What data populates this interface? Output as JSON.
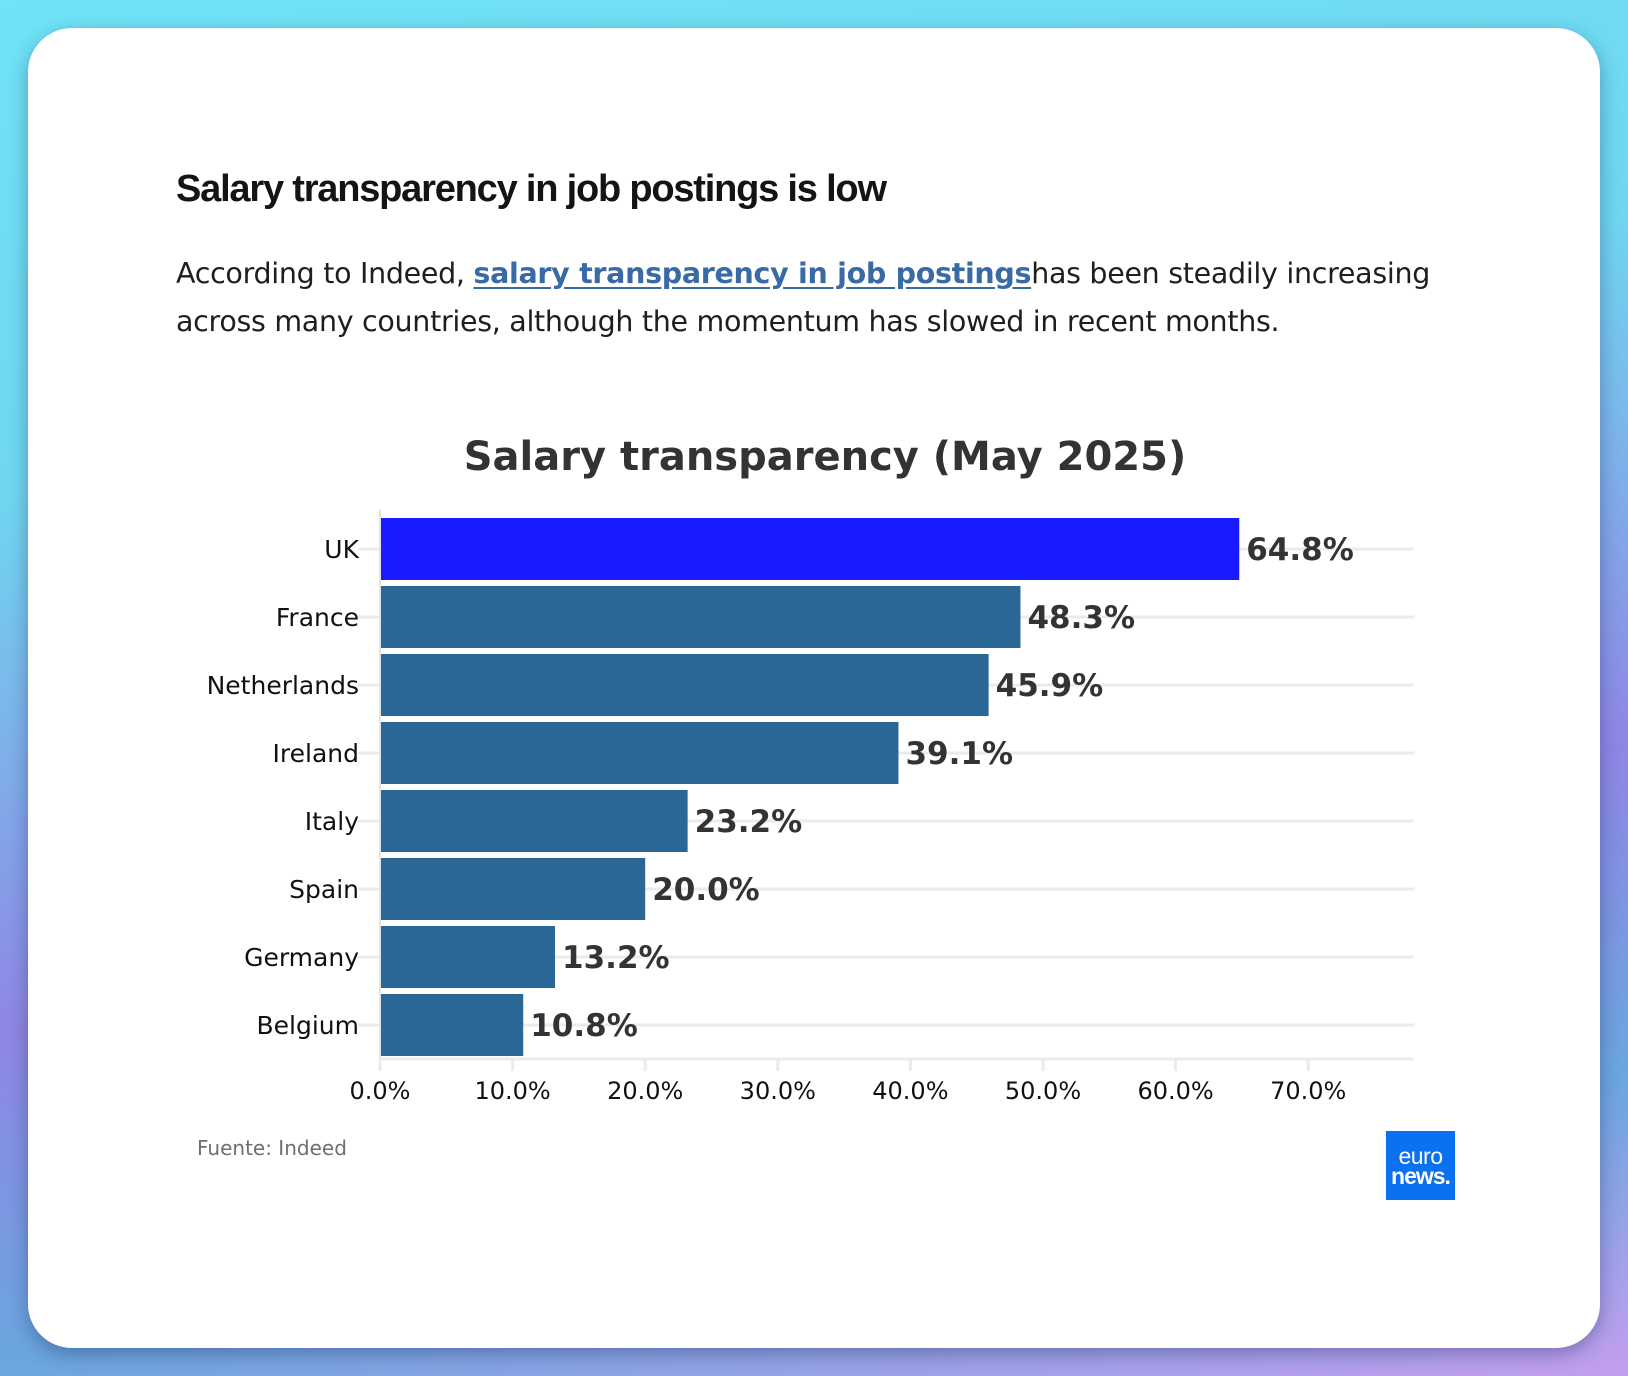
{
  "article": {
    "headline": "Salary transparency in job postings is low",
    "intro_before": "According to Indeed, ",
    "intro_link": "salary transparency in job postings",
    "intro_after": "has been steadily increasing across many countries, although the momentum has slowed in recent months."
  },
  "colors": {
    "highlight_bar": "#1a1aff",
    "default_bar": "#2a6794",
    "label_text": "#333333",
    "gridline": "#ebebeb"
  },
  "chart_data": {
    "type": "bar",
    "orientation": "horizontal",
    "title": "Salary transparency (May 2025)",
    "categories": [
      "UK",
      "France",
      "Netherlands",
      "Ireland",
      "Italy",
      "Spain",
      "Germany",
      "Belgium"
    ],
    "values": [
      64.8,
      48.3,
      45.9,
      39.1,
      23.2,
      20.0,
      13.2,
      10.8
    ],
    "value_labels": [
      "64.8%",
      "48.3%",
      "45.9%",
      "39.1%",
      "23.2%",
      "20.0%",
      "13.2%",
      "10.8%"
    ],
    "highlighted": [
      "UK"
    ],
    "xlabel": "",
    "ylabel": "",
    "xlim": [
      0,
      78
    ],
    "xticks": [
      0,
      10,
      20,
      30,
      40,
      50,
      60,
      70
    ],
    "xtick_labels": [
      "0.0%",
      "10.0%",
      "20.0%",
      "30.0%",
      "40.0%",
      "50.0%",
      "60.0%",
      "70.0%"
    ],
    "grid": true,
    "unit": "%",
    "source": "Fuente: Indeed"
  },
  "branding": {
    "logo_line1": "euro",
    "logo_line2": "news."
  }
}
